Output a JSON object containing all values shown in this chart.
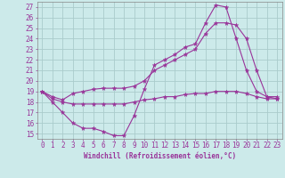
{
  "xlabel": "Windchill (Refroidissement éolien,°C)",
  "bg_color": "#cceaea",
  "grid_color": "#aacccc",
  "line_color": "#993399",
  "xlim": [
    -0.5,
    23.5
  ],
  "ylim": [
    14.5,
    27.5
  ],
  "yticks": [
    15,
    16,
    17,
    18,
    19,
    20,
    21,
    22,
    23,
    24,
    25,
    26,
    27
  ],
  "xticks": [
    0,
    1,
    2,
    3,
    4,
    5,
    6,
    7,
    8,
    9,
    10,
    11,
    12,
    13,
    14,
    15,
    16,
    17,
    18,
    19,
    20,
    21,
    22,
    23
  ],
  "line1_x": [
    0,
    1,
    2,
    3,
    4,
    5,
    6,
    7,
    8,
    9,
    10,
    11,
    12,
    13,
    14,
    15,
    16,
    17,
    18,
    19,
    20,
    21,
    22,
    23
  ],
  "line1_y": [
    19,
    18,
    17,
    16,
    15.5,
    15.5,
    15.2,
    14.8,
    14.8,
    16.7,
    19.2,
    21.5,
    22.0,
    22.5,
    23.2,
    23.5,
    25.5,
    27.2,
    27.0,
    24.0,
    21.0,
    19.0,
    18.5,
    18.5
  ],
  "line2_x": [
    0,
    1,
    2,
    3,
    4,
    5,
    6,
    7,
    8,
    9,
    10,
    11,
    12,
    13,
    14,
    15,
    16,
    17,
    18,
    19,
    20,
    21,
    22,
    23
  ],
  "line2_y": [
    19,
    18.5,
    18.2,
    18.8,
    19.0,
    19.2,
    19.3,
    19.3,
    19.3,
    19.5,
    20.0,
    21.0,
    21.5,
    22.0,
    22.5,
    23.0,
    24.5,
    25.5,
    25.5,
    25.3,
    24.0,
    21.0,
    18.5,
    18.3
  ],
  "line3_x": [
    0,
    1,
    2,
    3,
    4,
    5,
    6,
    7,
    8,
    9,
    10,
    11,
    12,
    13,
    14,
    15,
    16,
    17,
    18,
    19,
    20,
    21,
    22,
    23
  ],
  "line3_y": [
    19,
    18.3,
    18.0,
    17.8,
    17.8,
    17.8,
    17.8,
    17.8,
    17.8,
    18.0,
    18.2,
    18.3,
    18.5,
    18.5,
    18.7,
    18.8,
    18.8,
    19.0,
    19.0,
    19.0,
    18.8,
    18.5,
    18.3,
    18.3
  ]
}
